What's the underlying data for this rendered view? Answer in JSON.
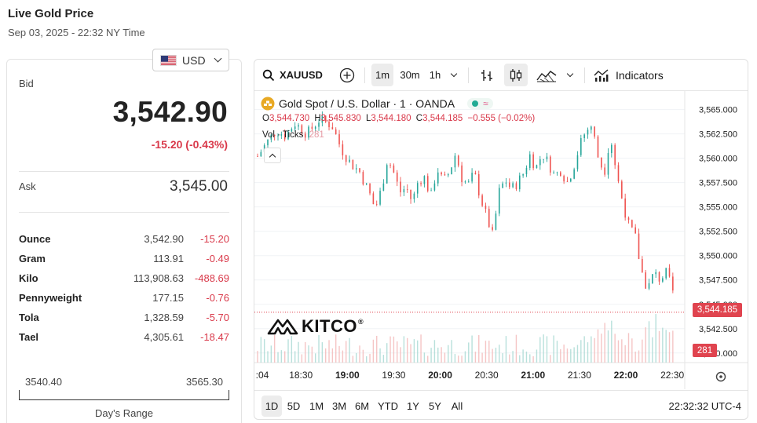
{
  "header": {
    "title": "Live Gold Price",
    "datetime": "Sep 03, 2025 - 22:32 NY Time"
  },
  "currency": {
    "selected": "USD",
    "flag_icon": "us-flag-icon"
  },
  "bid": {
    "label": "Bid",
    "value": "3,542.90",
    "change": "-15.20 (-0.43%)"
  },
  "ask": {
    "label": "Ask",
    "value": "3,545.00"
  },
  "units": [
    {
      "name": "Ounce",
      "price": "3,542.90",
      "change": "-15.20"
    },
    {
      "name": "Gram",
      "price": "113.91",
      "change": "-0.49"
    },
    {
      "name": "Kilo",
      "price": "113,908.63",
      "change": "-488.69"
    },
    {
      "name": "Pennyweight",
      "price": "177.15",
      "change": "-0.76"
    },
    {
      "name": "Tola",
      "price": "1,328.59",
      "change": "-5.70"
    },
    {
      "name": "Tael",
      "price": "4,305.61",
      "change": "-18.47"
    }
  ],
  "days_range": {
    "low": "3540.40",
    "high": "3565.30",
    "label": "Day's Range"
  },
  "toolbar": {
    "symbol": "XAUUSD",
    "intervals": [
      "1m",
      "30m",
      "1h"
    ],
    "active_interval": "1m",
    "indicators_label": "Indicators"
  },
  "legend": {
    "name": "Gold Spot / U.S. Dollar · 1 · OANDA",
    "open_label": "O",
    "open": "3,544.730",
    "high_label": "H",
    "high": "3,545.830",
    "low_label": "L",
    "low": "3,544.180",
    "close_label": "C",
    "close": "3,544.185",
    "change": "−0.555 (−0.02%)",
    "vol_label": "Vol · Ticks",
    "vol": "281"
  },
  "watermark": "KITCO",
  "price_tag": "3,544.185",
  "vol_tag": "281",
  "periods": [
    "1D",
    "5D",
    "1M",
    "3M",
    "6M",
    "YTD",
    "1Y",
    "5Y",
    "All"
  ],
  "active_period": "1D",
  "clock": "22:32:32 UTC-4",
  "colors": {
    "up": "#26a69a",
    "down": "#ef5350",
    "accent_red": "#d9394a"
  },
  "chart_data": {
    "type": "candlestick",
    "y_ticks": [
      "3,565.000",
      "3,562.500",
      "3,560.000",
      "3,557.500",
      "3,555.000",
      "3,552.500",
      "3,550.000",
      "3,547.500",
      "3,545.000",
      "3,542.500",
      "3,540.000"
    ],
    "ylim": [
      3539.5,
      3566.5
    ],
    "x_ticks": [
      ":04",
      "18:30",
      "19:00",
      "19:30",
      "20:00",
      "20:30",
      "21:00",
      "21:30",
      "22:00",
      "22:30"
    ],
    "x_range_minutes": [
      0,
      270
    ],
    "path": [
      [
        0,
        3560.2
      ],
      [
        6,
        3561.6
      ],
      [
        12,
        3562.9
      ],
      [
        18,
        3562.3
      ],
      [
        24,
        3563.6
      ],
      [
        32,
        3562.5
      ],
      [
        40,
        3564.0
      ],
      [
        48,
        3563.4
      ],
      [
        54,
        3561.0
      ],
      [
        60,
        3559.5
      ],
      [
        66,
        3558.6
      ],
      [
        72,
        3556.5
      ],
      [
        76,
        3554.8
      ],
      [
        80,
        3556.8
      ],
      [
        84,
        3560.0
      ],
      [
        88,
        3558.5
      ],
      [
        92,
        3556.5
      ],
      [
        96,
        3557.0
      ],
      [
        100,
        3555.5
      ],
      [
        104,
        3557.8
      ],
      [
        108,
        3558.0
      ],
      [
        112,
        3556.0
      ],
      [
        116,
        3559.0
      ],
      [
        120,
        3557.5
      ],
      [
        124,
        3558.6
      ],
      [
        128,
        3560.5
      ],
      [
        132,
        3558.0
      ],
      [
        136,
        3557.2
      ],
      [
        140,
        3558.5
      ],
      [
        144,
        3556.0
      ],
      [
        148,
        3554.0
      ],
      [
        152,
        3552.0
      ],
      [
        156,
        3556.5
      ],
      [
        160,
        3557.8
      ],
      [
        164,
        3556.8
      ],
      [
        168,
        3557.5
      ],
      [
        172,
        3558.5
      ],
      [
        176,
        3560.3
      ],
      [
        180,
        3559.0
      ],
      [
        184,
        3560.5
      ],
      [
        188,
        3559.5
      ],
      [
        192,
        3558.2
      ],
      [
        196,
        3558.8
      ],
      [
        200,
        3557.5
      ],
      [
        204,
        3559.0
      ],
      [
        208,
        3561.2
      ],
      [
        212,
        3562.8
      ],
      [
        216,
        3563.4
      ],
      [
        220,
        3560.2
      ],
      [
        224,
        3558.5
      ],
      [
        228,
        3562.4
      ],
      [
        232,
        3558.4
      ],
      [
        236,
        3555.5
      ],
      [
        240,
        3553.0
      ],
      [
        244,
        3552.0
      ],
      [
        248,
        3548.5
      ],
      [
        252,
        3546.5
      ],
      [
        256,
        3548.2
      ],
      [
        260,
        3547.6
      ],
      [
        264,
        3548.2
      ],
      [
        268,
        3546.5
      ],
      [
        272,
        3545.0
      ],
      [
        276,
        3549.5
      ],
      [
        280,
        3547.5
      ],
      [
        284,
        3546.0
      ],
      [
        288,
        3542.5
      ],
      [
        292,
        3544.2
      ],
      [
        296,
        3543.0
      ],
      [
        300,
        3542.2
      ],
      [
        304,
        3544.8
      ],
      [
        308,
        3546.0
      ],
      [
        312,
        3546.8
      ],
      [
        316,
        3543.8
      ],
      [
        320,
        3544.2
      ]
    ],
    "last_price": 3544.185,
    "last_volume": 281
  }
}
